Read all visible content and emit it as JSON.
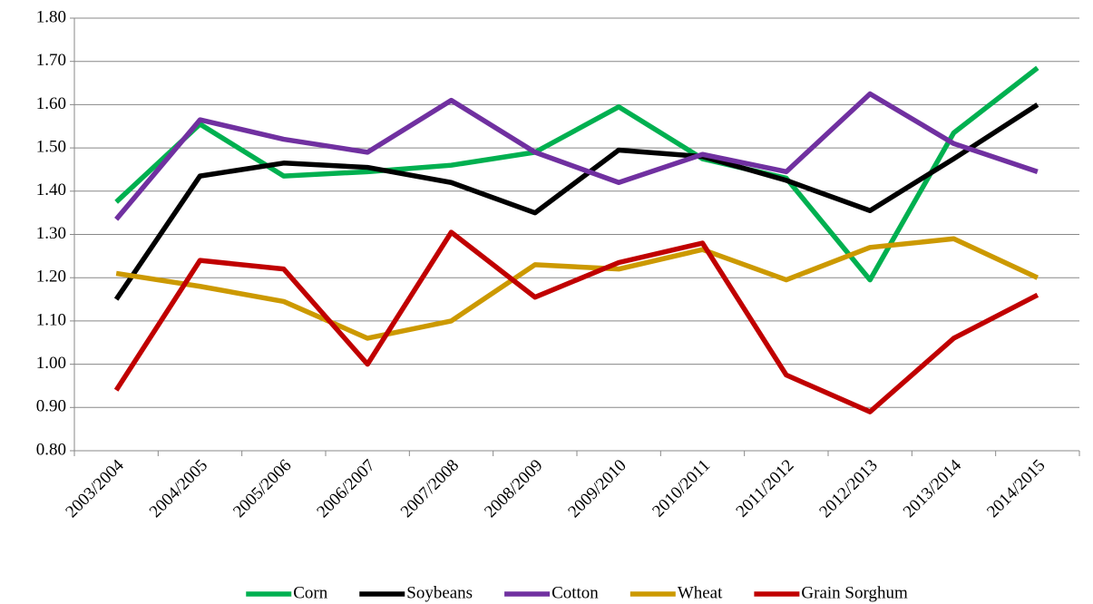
{
  "chart_data": {
    "type": "line",
    "categories": [
      "2003/2004",
      "2004/2005",
      "2005/2006",
      "2006/2007",
      "2007/2008",
      "2008/2009",
      "2009/2010",
      "2010/2011",
      "2011/2012",
      "2012/2013",
      "2013/2014",
      "2014/2015"
    ],
    "series": [
      {
        "name": "Corn",
        "color": "#00b050",
        "values": [
          1.375,
          1.555,
          1.435,
          1.445,
          1.46,
          1.49,
          1.595,
          1.475,
          1.43,
          1.195,
          1.535,
          1.685
        ]
      },
      {
        "name": "Soybeans",
        "color": "#000000",
        "values": [
          1.15,
          1.435,
          1.465,
          1.455,
          1.42,
          1.35,
          1.495,
          1.48,
          1.425,
          1.355,
          1.475,
          1.6
        ]
      },
      {
        "name": "Cotton",
        "color": "#7030a0",
        "values": [
          1.335,
          1.565,
          1.52,
          1.49,
          1.61,
          1.49,
          1.42,
          1.485,
          1.445,
          1.625,
          1.51,
          1.445
        ]
      },
      {
        "name": "Wheat",
        "color": "#cc9900",
        "values": [
          1.21,
          1.18,
          1.145,
          1.06,
          1.1,
          1.23,
          1.22,
          1.265,
          1.195,
          1.27,
          1.29,
          1.2
        ]
      },
      {
        "name": "Grain Sorghum",
        "color": "#c00000",
        "values": [
          0.94,
          1.24,
          1.22,
          1.0,
          1.305,
          1.155,
          1.235,
          1.28,
          0.975,
          0.89,
          1.06,
          1.16
        ]
      }
    ],
    "ylim": [
      0.8,
      1.8
    ],
    "yticks": [
      {
        "value": 0.8,
        "label": "0.80"
      },
      {
        "value": 0.9,
        "label": "0.90"
      },
      {
        "value": 1.0,
        "label": "1.00"
      },
      {
        "value": 1.1,
        "label": "1.10"
      },
      {
        "value": 1.2,
        "label": "1.20"
      },
      {
        "value": 1.3,
        "label": "1.30"
      },
      {
        "value": 1.4,
        "label": "1.40"
      },
      {
        "value": 1.5,
        "label": "1.50"
      },
      {
        "value": 1.6,
        "label": "1.60"
      },
      {
        "value": 1.7,
        "label": "1.70"
      },
      {
        "value": 1.8,
        "label": "1.80"
      }
    ],
    "grid": true,
    "legend": "bottom"
  }
}
